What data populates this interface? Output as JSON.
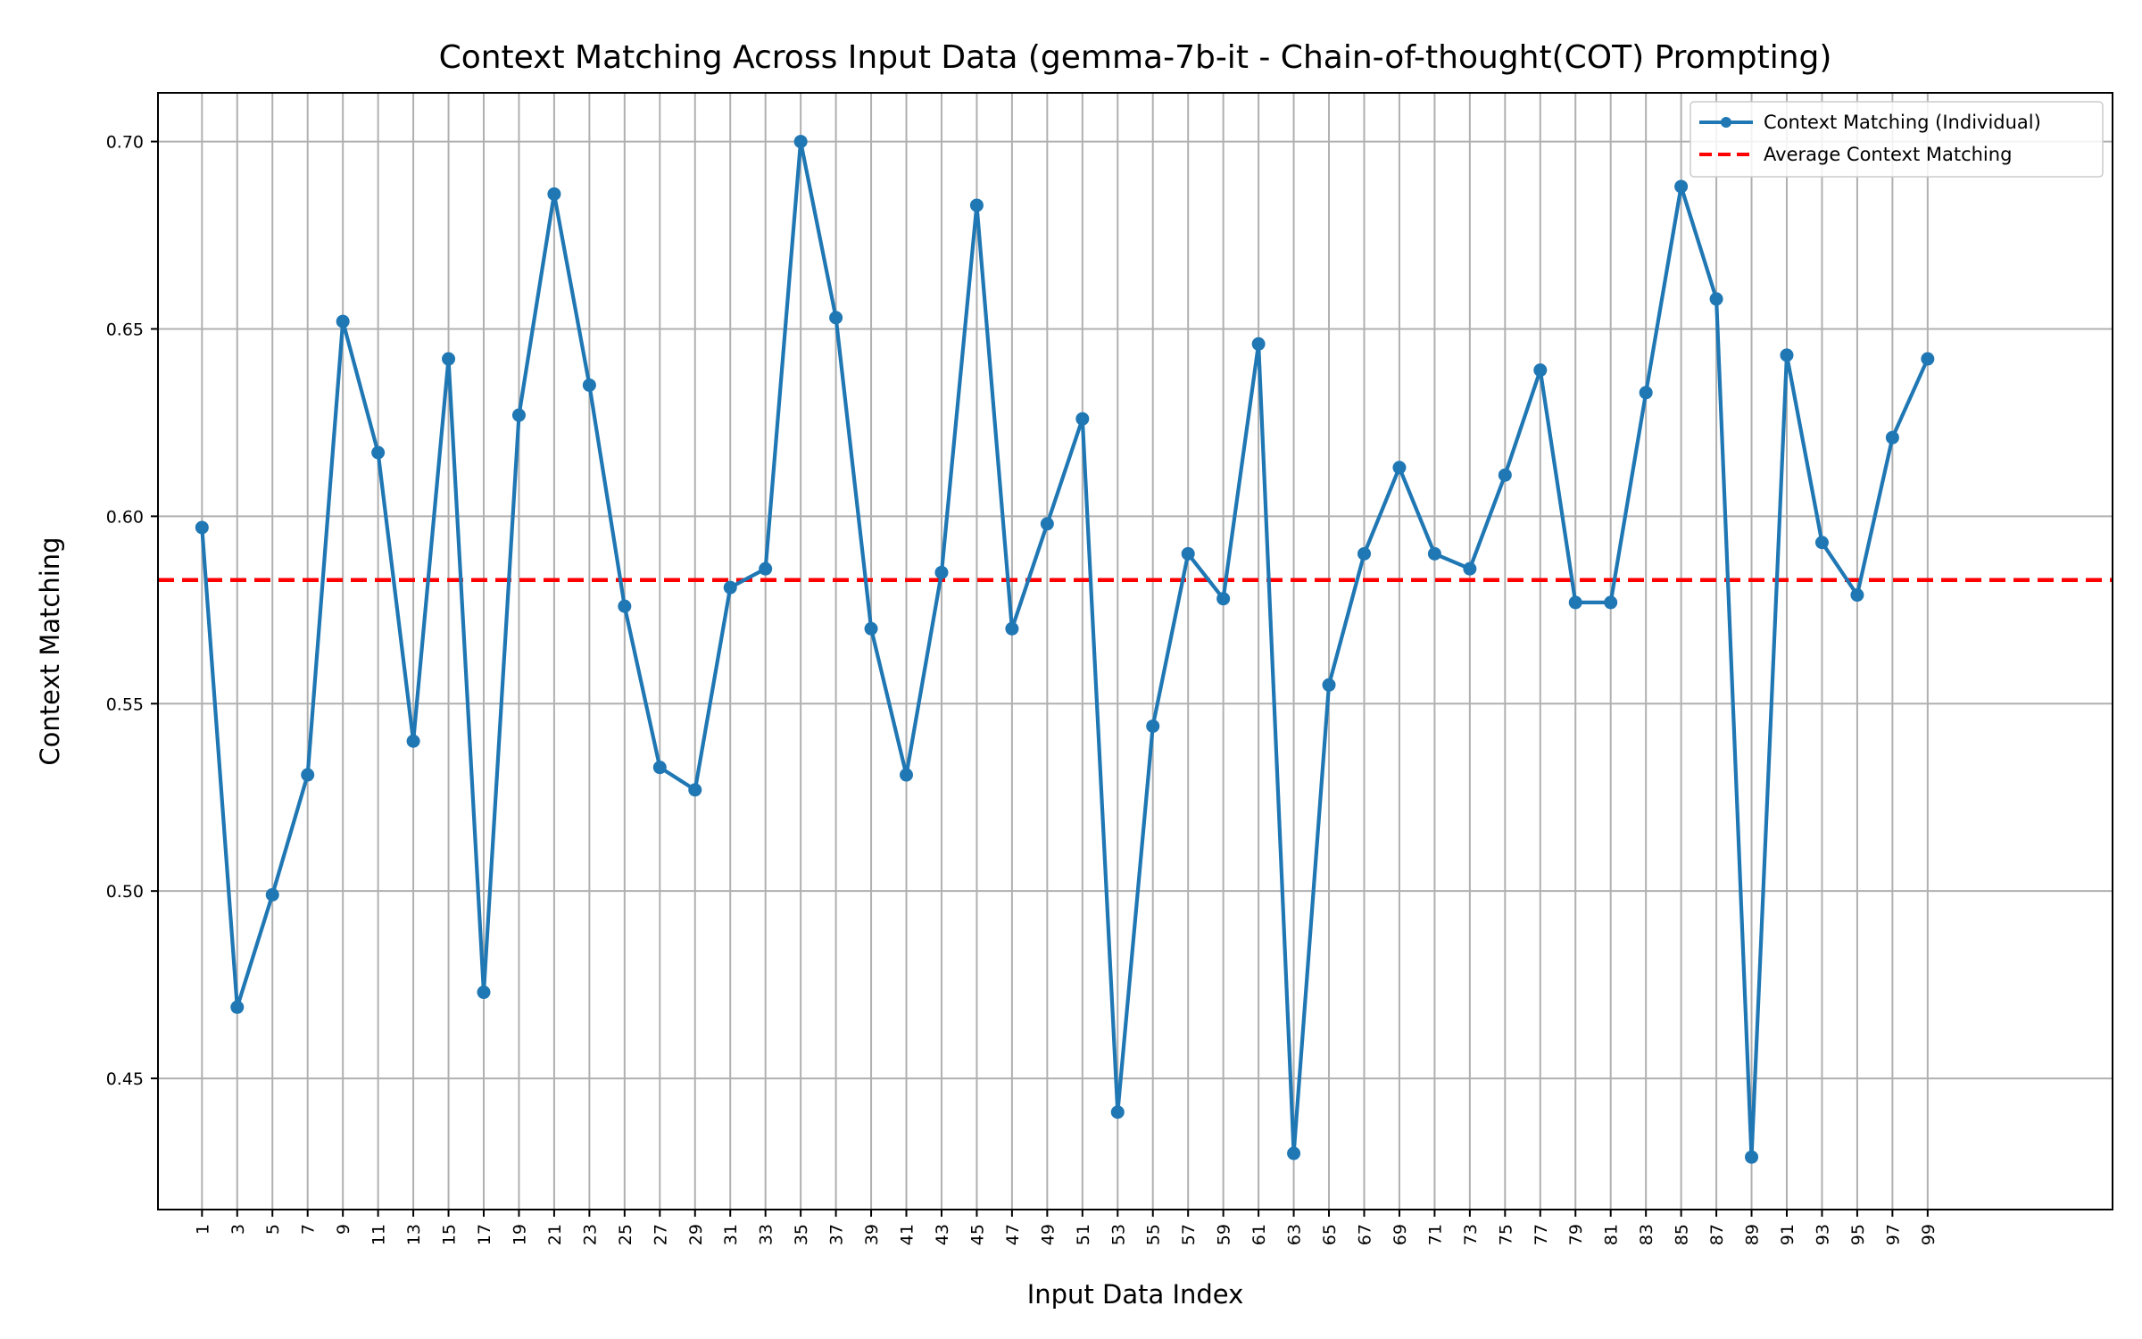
{
  "chart_data": {
    "type": "line",
    "title": "Context Matching Across Input Data (gemma-7b-it - Chain-of-thought(COT) Prompting)",
    "xlabel": "Input Data Index",
    "ylabel": "Context Matching",
    "ylim": [
      0.415,
      0.713
    ],
    "xlim": [
      -1.5,
      109.5
    ],
    "y_ticks": [
      0.45,
      0.5,
      0.55,
      0.6,
      0.65,
      0.7
    ],
    "y_tick_labels": [
      "0.45",
      "0.50",
      "0.55",
      "0.60",
      "0.65",
      "0.70"
    ],
    "x_ticks": [
      1,
      3,
      5,
      7,
      9,
      11,
      13,
      15,
      17,
      19,
      21,
      23,
      25,
      27,
      29,
      31,
      33,
      35,
      37,
      39,
      41,
      43,
      45,
      47,
      49,
      51,
      53,
      55,
      57,
      59,
      61,
      63,
      65,
      67,
      69,
      71,
      73,
      75,
      77,
      79,
      81,
      83,
      85,
      87,
      89,
      91,
      93,
      95,
      97,
      99
    ],
    "x_tick_labels": [
      "1",
      "3",
      "5",
      "7",
      "9",
      "11",
      "13",
      "15",
      "17",
      "19",
      "21",
      "23",
      "25",
      "27",
      "29",
      "31",
      "33",
      "35",
      "37",
      "39",
      "41",
      "43",
      "45",
      "47",
      "49",
      "51",
      "53",
      "55",
      "57",
      "59",
      "61",
      "63",
      "65",
      "67",
      "69",
      "71",
      "73",
      "75",
      "77",
      "79",
      "81",
      "83",
      "85",
      "87",
      "89",
      "91",
      "93",
      "95",
      "97",
      "99"
    ],
    "grid": true,
    "legend_position": "top-right",
    "series": [
      {
        "name": "Context Matching (Individual)",
        "color": "#1f77b4",
        "style": "line-with-markers",
        "x": [
          1,
          3,
          5,
          7,
          9,
          11,
          13,
          15,
          17,
          19,
          21,
          23,
          25,
          27,
          29,
          31,
          33,
          35,
          37,
          39,
          41,
          43,
          45,
          47,
          49,
          51,
          53,
          55,
          57,
          59,
          61,
          63,
          65,
          67,
          69,
          71,
          73,
          75,
          77,
          79,
          81,
          83,
          85,
          87,
          89,
          91,
          93,
          95,
          97,
          99
        ],
        "values": [
          0.597,
          0.469,
          0.499,
          0.531,
          0.652,
          0.617,
          0.54,
          0.642,
          0.473,
          0.627,
          0.686,
          0.635,
          0.576,
          0.533,
          0.527,
          0.581,
          0.586,
          0.7,
          0.653,
          0.57,
          0.531,
          0.585,
          0.683,
          0.57,
          0.598,
          0.626,
          0.441,
          0.544,
          0.59,
          0.578,
          0.646,
          0.43,
          0.555,
          0.59,
          0.613,
          0.59,
          0.586,
          0.611,
          0.639,
          0.577,
          0.577,
          0.633,
          0.688,
          0.658,
          0.429,
          0.643,
          0.593,
          0.579,
          0.621,
          0.642
        ]
      },
      {
        "name": "Average Context Matching",
        "color": "#ff0000",
        "style": "dashed-horizontal",
        "value": 0.583
      }
    ]
  }
}
